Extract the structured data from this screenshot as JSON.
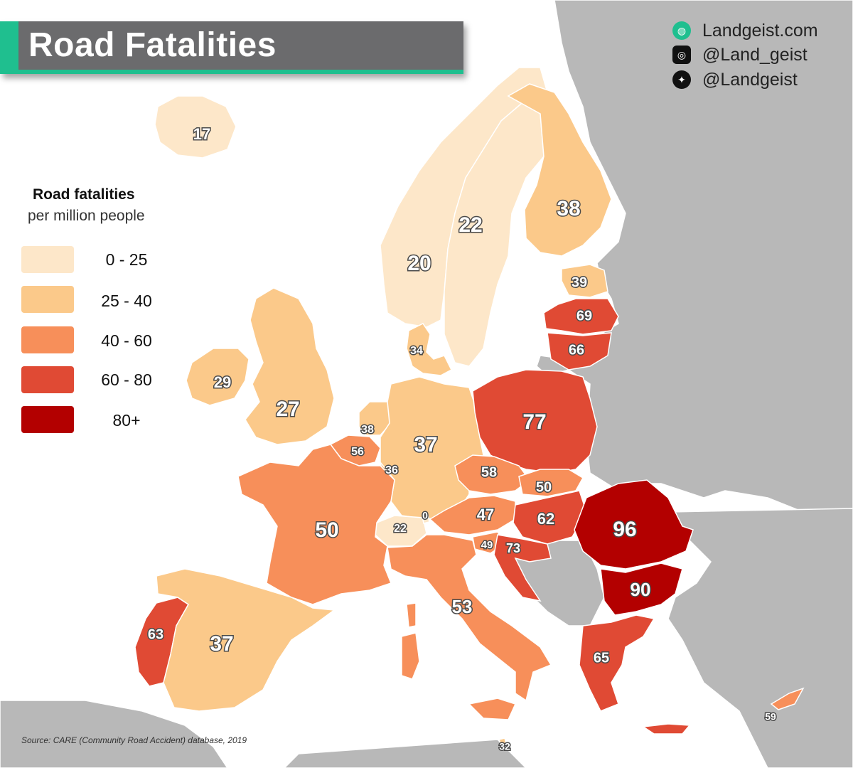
{
  "title": "Road Fatalities",
  "branding": [
    {
      "icon": "landgeist-globe-icon",
      "text": "Landgeist.com"
    },
    {
      "icon": "instagram-icon",
      "text": "@Land_geist"
    },
    {
      "icon": "twitter-icon",
      "text": "@Landgeist"
    }
  ],
  "legend": {
    "title": "Road fatalities",
    "subtitle": "per million people",
    "bins": [
      {
        "label": "0 - 25",
        "color": "#fde7c9"
      },
      {
        "label": "25 - 40",
        "color": "#fbc98a"
      },
      {
        "label": "40 - 60",
        "color": "#f78f5a"
      },
      {
        "label": "60 - 80",
        "color": "#e04a34"
      },
      {
        "label": "80+",
        "color": "#b30000"
      }
    ]
  },
  "source": "Source: CARE (Community Road Accident) database, 2019",
  "colors": {
    "non_data_land": "#b8b8b8",
    "sea": "#ffffff",
    "accent": "#1fbf8f"
  },
  "regions": [
    {
      "id": "iceland",
      "value": "17"
    },
    {
      "id": "norway",
      "value": "20"
    },
    {
      "id": "sweden",
      "value": "22"
    },
    {
      "id": "finland",
      "value": "38"
    },
    {
      "id": "estonia",
      "value": "39"
    },
    {
      "id": "latvia",
      "value": "69"
    },
    {
      "id": "lithuania",
      "value": "66"
    },
    {
      "id": "denmark",
      "value": "34"
    },
    {
      "id": "ireland",
      "value": "29"
    },
    {
      "id": "united-kingdom",
      "value": "27"
    },
    {
      "id": "netherlands",
      "value": "38"
    },
    {
      "id": "belgium",
      "value": "56"
    },
    {
      "id": "luxembourg",
      "value": "36"
    },
    {
      "id": "germany",
      "value": "37"
    },
    {
      "id": "poland",
      "value": "77"
    },
    {
      "id": "czechia",
      "value": "58"
    },
    {
      "id": "slovakia",
      "value": "50"
    },
    {
      "id": "austria",
      "value": "47"
    },
    {
      "id": "hungary",
      "value": "62"
    },
    {
      "id": "switzerland",
      "value": "22"
    },
    {
      "id": "liechtenstein",
      "value": "0"
    },
    {
      "id": "france",
      "value": "50"
    },
    {
      "id": "slovenia",
      "value": "49"
    },
    {
      "id": "croatia",
      "value": "73"
    },
    {
      "id": "romania",
      "value": "96"
    },
    {
      "id": "bulgaria",
      "value": "90"
    },
    {
      "id": "italy",
      "value": "53"
    },
    {
      "id": "portugal",
      "value": "63"
    },
    {
      "id": "spain",
      "value": "37"
    },
    {
      "id": "greece",
      "value": "65"
    },
    {
      "id": "cyprus",
      "value": "59"
    },
    {
      "id": "malta",
      "value": "32"
    }
  ]
}
